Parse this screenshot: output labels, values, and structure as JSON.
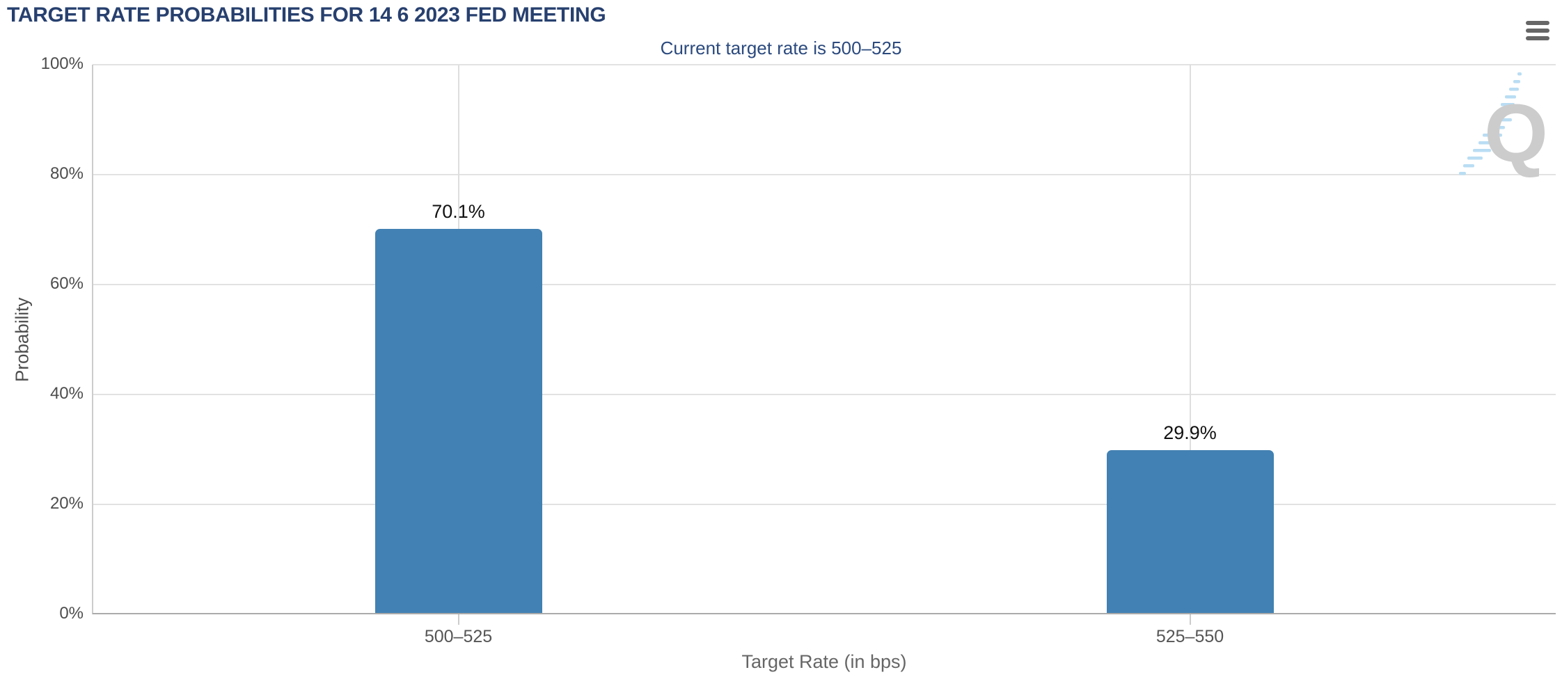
{
  "chart_data": {
    "type": "bar",
    "title": "TARGET RATE PROBABILITIES FOR 14 6 2023 FED MEETING",
    "subtitle": "Current target rate is 500–525",
    "categories": [
      "500–525",
      "525–550"
    ],
    "values": [
      70.1,
      29.9
    ],
    "value_labels": [
      "70.1%",
      "29.9%"
    ],
    "xlabel": "Target Rate (in bps)",
    "ylabel": "Probability",
    "ylim": [
      0,
      100
    ],
    "y_ticks": [
      0,
      20,
      40,
      60,
      80,
      100
    ],
    "y_tick_labels": [
      "0%",
      "20%",
      "40%",
      "60%",
      "80%",
      "100%"
    ],
    "grid": {
      "horizontal": true,
      "vertical_at_category_centers": true
    },
    "legend": "none",
    "colors": {
      "bar": "#4281b3",
      "title": "#27406f",
      "subtitle": "#2b4a7e",
      "axis_text": "#4d4d4d",
      "axis_title_text": "#666666",
      "value_label": "#111111",
      "gridline": "#e2e2e2",
      "watermark_letter": "#cccccc",
      "watermark_dashes": "#b9ddf3"
    }
  },
  "controls": {
    "menu_icon": "hamburger-menu-icon"
  },
  "watermark": {
    "icon": "q-logo-watermark",
    "letter": "Q"
  }
}
